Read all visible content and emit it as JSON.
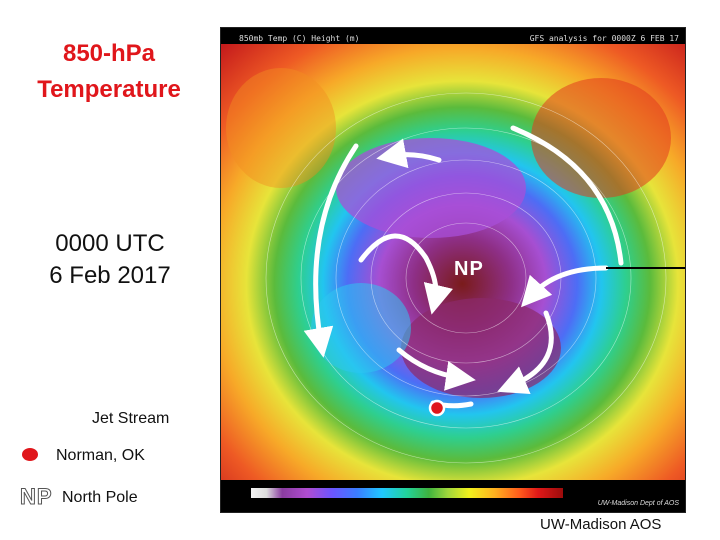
{
  "title_line1": "850-hPa",
  "title_line2": "Temperature",
  "date_line1": "0000 UTC",
  "date_line2": "6 Feb 2017",
  "legend": {
    "jet_stream": "Jet Stream",
    "norman": "Norman, OK",
    "np_symbol": "NP",
    "north_pole": "North Pole"
  },
  "credit": "UW-Madison AOS",
  "map": {
    "header_left": "850mb Temp (C) Height (m)",
    "header_right": "GFS analysis for 0000Z 6 FEB 17",
    "np_label": "NP",
    "footer_credit": "UW-Madison Dept of AOS",
    "colors": {
      "marker": "#e0161b",
      "arrows": "#ffffff",
      "warm": "#e01818",
      "cold": "#8a3ca0"
    }
  }
}
